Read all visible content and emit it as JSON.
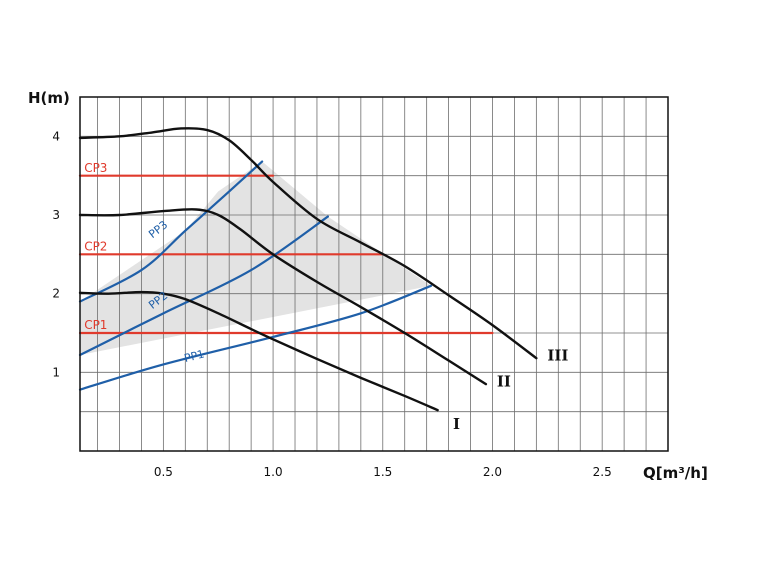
{
  "chart_data": {
    "type": "line",
    "xlabel": "Q[m³/h]",
    "ylabel": "H(m)",
    "xlim": [
      0.12,
      2.8
    ],
    "ylim": [
      0,
      4.5
    ],
    "x_ticks": [
      {
        "value": 0.5,
        "label": "0.5"
      },
      {
        "value": 1.0,
        "label": "1.0"
      },
      {
        "value": 1.5,
        "label": "1.5"
      },
      {
        "value": 2.0,
        "label": "2.0"
      },
      {
        "value": 2.5,
        "label": "2.5"
      }
    ],
    "y_ticks": [
      {
        "value": 1,
        "label": "1"
      },
      {
        "value": 2,
        "label": "2"
      },
      {
        "value": 3,
        "label": "3"
      },
      {
        "value": 4,
        "label": "4"
      }
    ],
    "grid": true,
    "shaded_region": [
      [
        0.12,
        1.22
      ],
      [
        1.72,
        2.1
      ],
      [
        1.25,
        2.98
      ],
      [
        0.95,
        3.68
      ],
      [
        0.75,
        3.3
      ],
      [
        0.6,
        2.8
      ],
      [
        0.12,
        1.9
      ]
    ],
    "series": [
      {
        "name": "I",
        "color": "#111111",
        "points": [
          [
            0.12,
            2.01
          ],
          [
            0.25,
            2.0
          ],
          [
            0.4,
            2.02
          ],
          [
            0.5,
            2.0
          ],
          [
            0.6,
            1.93
          ],
          [
            0.75,
            1.75
          ],
          [
            0.9,
            1.55
          ],
          [
            1.0,
            1.42
          ],
          [
            1.2,
            1.17
          ],
          [
            1.4,
            0.93
          ],
          [
            1.6,
            0.7
          ],
          [
            1.75,
            0.52
          ]
        ]
      },
      {
        "name": "II",
        "color": "#111111",
        "points": [
          [
            0.12,
            3.0
          ],
          [
            0.3,
            3.0
          ],
          [
            0.5,
            3.05
          ],
          [
            0.65,
            3.07
          ],
          [
            0.75,
            3.0
          ],
          [
            0.85,
            2.82
          ],
          [
            1.0,
            2.5
          ],
          [
            1.2,
            2.15
          ],
          [
            1.4,
            1.83
          ],
          [
            1.6,
            1.5
          ],
          [
            1.8,
            1.15
          ],
          [
            1.97,
            0.85
          ]
        ]
      },
      {
        "name": "III",
        "color": "#111111",
        "points": [
          [
            0.12,
            3.98
          ],
          [
            0.3,
            4.0
          ],
          [
            0.45,
            4.05
          ],
          [
            0.58,
            4.1
          ],
          [
            0.7,
            4.08
          ],
          [
            0.8,
            3.95
          ],
          [
            0.9,
            3.7
          ],
          [
            1.0,
            3.42
          ],
          [
            1.2,
            2.95
          ],
          [
            1.4,
            2.65
          ],
          [
            1.6,
            2.35
          ],
          [
            1.8,
            1.98
          ],
          [
            2.0,
            1.6
          ],
          [
            2.2,
            1.18
          ]
        ]
      },
      {
        "name": "PP1",
        "color": "#1f5fa8",
        "points": [
          [
            0.12,
            0.78
          ],
          [
            0.5,
            1.1
          ],
          [
            1.0,
            1.45
          ],
          [
            1.4,
            1.75
          ],
          [
            1.72,
            2.1
          ]
        ]
      },
      {
        "name": "PP2",
        "color": "#1f5fa8",
        "points": [
          [
            0.12,
            1.22
          ],
          [
            0.5,
            1.75
          ],
          [
            0.9,
            2.3
          ],
          [
            1.25,
            2.98
          ]
        ]
      },
      {
        "name": "PP3",
        "color": "#1f5fa8",
        "points": [
          [
            0.12,
            1.9
          ],
          [
            0.4,
            2.3
          ],
          [
            0.6,
            2.8
          ],
          [
            0.8,
            3.3
          ],
          [
            0.95,
            3.68
          ]
        ]
      },
      {
        "name": "CP1",
        "color": "#e03a2c",
        "points": [
          [
            0.12,
            1.5
          ],
          [
            2.0,
            1.5
          ]
        ]
      },
      {
        "name": "CP2",
        "color": "#e03a2c",
        "points": [
          [
            0.12,
            2.5
          ],
          [
            1.5,
            2.5
          ]
        ]
      },
      {
        "name": "CP3",
        "color": "#e03a2c",
        "points": [
          [
            0.12,
            3.5
          ],
          [
            1.0,
            3.5
          ]
        ]
      }
    ],
    "line_labels": {
      "curve_labels": [
        {
          "text": "I",
          "x": 1.82,
          "y": 0.28
        },
        {
          "text": "II",
          "x": 2.02,
          "y": 0.82
        },
        {
          "text": "III",
          "x": 2.25,
          "y": 1.15
        }
      ],
      "cp_labels": [
        {
          "text": "CP1",
          "x": 0.13,
          "y": 1.6
        },
        {
          "text": "CP2",
          "x": 0.13,
          "y": 2.6
        },
        {
          "text": "CP3",
          "x": 0.13,
          "y": 3.6
        }
      ],
      "pp_labels": [
        {
          "text": "PP1",
          "x": 0.6,
          "y": 1.13,
          "angle": -14
        },
        {
          "text": "PP2",
          "x": 0.45,
          "y": 1.8,
          "angle": -38
        },
        {
          "text": "PP3",
          "x": 0.45,
          "y": 2.7,
          "angle": -38
        }
      ]
    }
  }
}
